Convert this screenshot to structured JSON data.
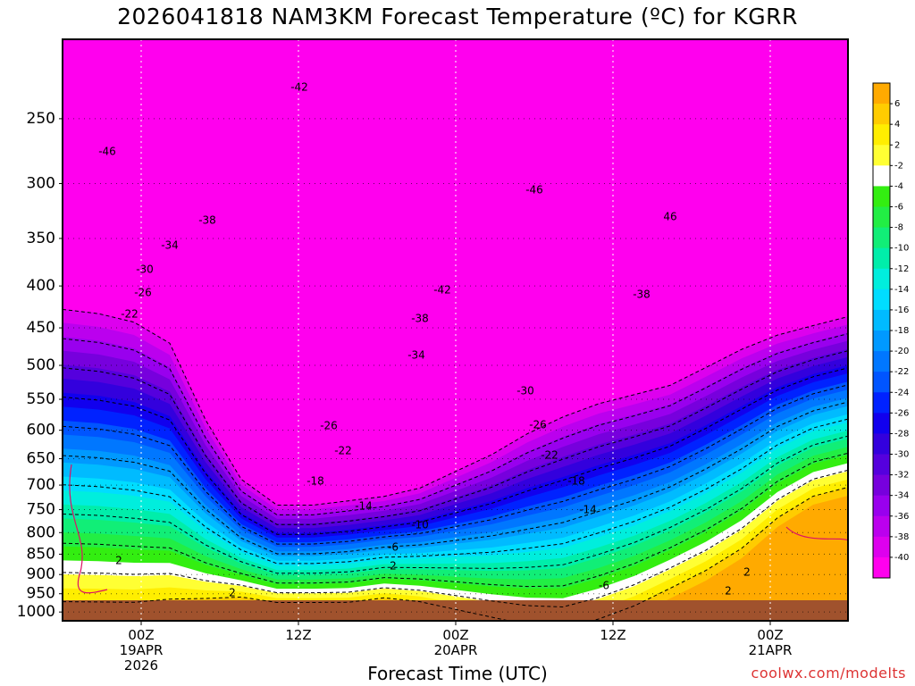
{
  "chart_data": {
    "type": "contour-cross-section",
    "title": "2026041818 NAM3KM Forecast Temperature (ºC) for KGRR",
    "xlabel": "Forecast Time (UTC)",
    "credit": "coolwx.com/modelts",
    "y_axis": {
      "scale": "log",
      "range": [
        200,
        1025
      ],
      "ticks": [
        250,
        300,
        350,
        400,
        450,
        500,
        550,
        600,
        650,
        700,
        750,
        800,
        850,
        900,
        950,
        1000
      ]
    },
    "x_ticks": [
      {
        "label_lines": [
          "00Z",
          "19APR",
          "2026"
        ]
      },
      {
        "label_lines": [
          "12Z"
        ]
      },
      {
        "label_lines": [
          "00Z",
          "20APR"
        ]
      },
      {
        "label_lines": [
          "12Z"
        ]
      },
      {
        "label_lines": [
          "00Z",
          "21APR"
        ]
      }
    ],
    "colorbar": {
      "levels": [
        "6",
        "4",
        "2",
        "-2",
        "-4",
        "-6",
        "-8",
        "-10",
        "-12",
        "-14",
        "-16",
        "-18",
        "-20",
        "-22",
        "-24",
        "-26",
        "-28",
        "-30",
        "-32",
        "-34",
        "-36",
        "-38",
        "-40"
      ],
      "colors": [
        "#ffaa00",
        "#ffcc00",
        "#ffee00",
        "#ffff33",
        "#ffffff",
        "#33ee11",
        "#22ee44",
        "#11ee77",
        "#00eeaa",
        "#00eedd",
        "#00ddff",
        "#00bbff",
        "#0099ff",
        "#0077ff",
        "#0055ff",
        "#0022ff",
        "#1100ee",
        "#3300dd",
        "#5500dd",
        "#7700dd",
        "#9900ee",
        "#bb00ee",
        "#dd00ee",
        "#ff00ee"
      ]
    },
    "contour_labels": [
      {
        "text": "-42"
      },
      {
        "text": "-46"
      },
      {
        "text": "-46"
      },
      {
        "text": "46"
      },
      {
        "text": "-38"
      },
      {
        "text": "-34"
      },
      {
        "text": "-30"
      },
      {
        "text": "-26"
      },
      {
        "text": "-22"
      },
      {
        "text": "-42"
      },
      {
        "text": "-38"
      },
      {
        "text": "-38"
      },
      {
        "text": "-34"
      },
      {
        "text": "-30"
      },
      {
        "text": "-26"
      },
      {
        "text": "-26"
      },
      {
        "text": "-22"
      },
      {
        "text": "-22"
      },
      {
        "text": "-18"
      },
      {
        "text": "-18"
      },
      {
        "text": "-14"
      },
      {
        "text": "-14"
      },
      {
        "text": "-10"
      },
      {
        "text": "-6"
      },
      {
        "text": "-6"
      },
      {
        "text": "2"
      },
      {
        "text": "2"
      },
      {
        "text": "2"
      },
      {
        "text": "2"
      },
      {
        "text": "2"
      }
    ]
  }
}
